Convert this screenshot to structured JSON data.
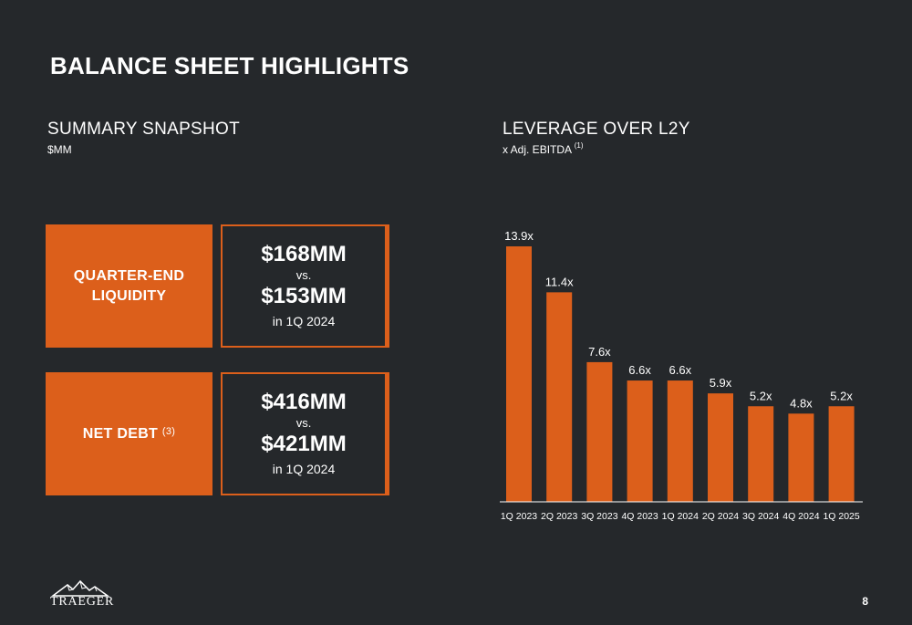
{
  "page": {
    "title": "BALANCE SHEET HIGHLIGHTS",
    "page_number": "8",
    "logo_text": "TRAEGER"
  },
  "summary": {
    "title": "SUMMARY SNAPSHOT",
    "subtitle": "$MM",
    "cards": [
      {
        "label": "QUARTER-END LIQUIDITY",
        "label_line1": "QUARTER-END",
        "label_line2": "LIQUIDITY",
        "label_sup": "",
        "value_current": "$168MM",
        "vs": "vs.",
        "value_prior": "$153MM",
        "prior_period": "in 1Q 2024"
      },
      {
        "label": "NET DEBT",
        "label_line1": "NET DEBT",
        "label_line2": "",
        "label_sup": "(3)",
        "value_current": "$416MM",
        "vs": "vs.",
        "value_prior": "$421MM",
        "prior_period": "in 1Q 2024"
      }
    ]
  },
  "leverage": {
    "title": "LEVERAGE OVER L2Y",
    "subtitle": "x Adj. EBITDA",
    "subtitle_sup": "(1)"
  },
  "colors": {
    "background": "#25282b",
    "accent": "#dc5f1b",
    "text": "#ffffff"
  },
  "chart_data": {
    "type": "bar",
    "title": "LEVERAGE OVER L2Y",
    "ylabel": "x Adj. EBITDA",
    "categories": [
      "1Q 2023",
      "2Q 2023",
      "3Q 2023",
      "4Q 2023",
      "1Q 2024",
      "2Q 2024",
      "3Q 2024",
      "4Q 2024",
      "1Q 2025"
    ],
    "values": [
      13.9,
      11.4,
      7.6,
      6.6,
      6.6,
      5.9,
      5.2,
      4.8,
      5.2
    ],
    "data_labels": [
      "13.9x",
      "11.4x",
      "7.6x",
      "6.6x",
      "6.6x",
      "5.9x",
      "5.2x",
      "4.8x",
      "5.2x"
    ],
    "ylim": [
      0,
      14
    ],
    "grid": false,
    "color": "#dc5f1b"
  }
}
